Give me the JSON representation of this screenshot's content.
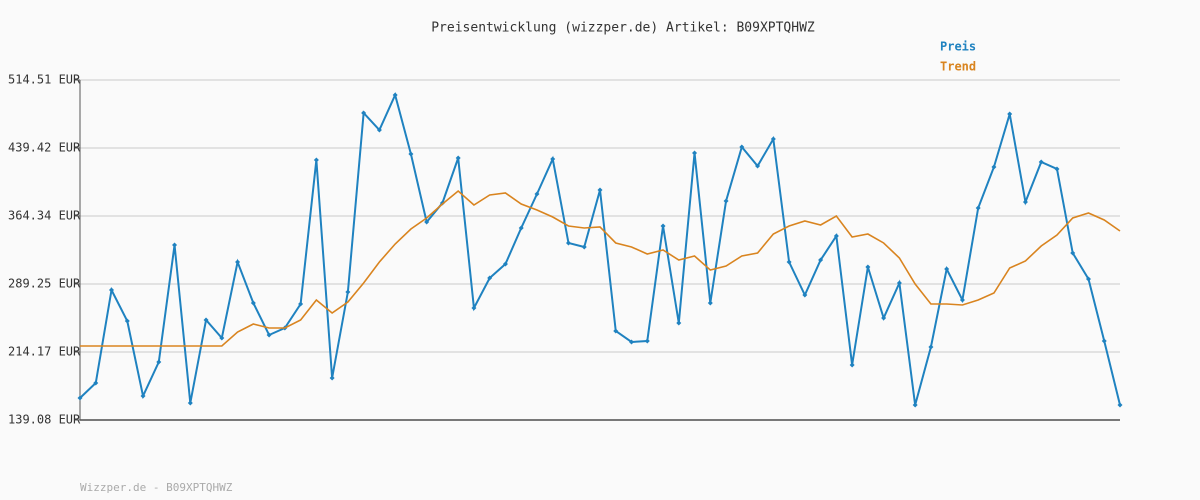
{
  "chart_data": {
    "type": "line",
    "title": "Preisentwicklung (wizzper.de) Artikel: B09XPTQHWZ",
    "footer": "Wizzper.de - B09XPTQHWZ",
    "ylim": [
      139.08,
      514.51
    ],
    "yticks": [
      {
        "value": 139.08,
        "label": "139.08 EUR"
      },
      {
        "value": 214.17,
        "label": "214.17 EUR"
      },
      {
        "value": 289.25,
        "label": "289.25 EUR"
      },
      {
        "value": 364.34,
        "label": "364.34 EUR"
      },
      {
        "value": 439.42,
        "label": "439.42 EUR"
      },
      {
        "value": 514.51,
        "label": "514.51 EUR"
      }
    ],
    "grid": true,
    "legend": "top-right",
    "series": [
      {
        "name": "Preis",
        "color": "#1f82c0",
        "markers": true,
        "values": [
          163.37,
          179.94,
          282.63,
          248.4,
          165.58,
          203.12,
          332.32,
          157.85,
          249.5,
          229.63,
          313.55,
          268.27,
          232.94,
          240.67,
          267.17,
          426.17,
          185.46,
          280.42,
          478.07,
          459.3,
          497.95,
          432.8,
          357.71,
          378.69,
          428.38,
          262.75,
          295.88,
          311.34,
          351.09,
          388.63,
          427.28,
          334.53,
          330.11,
          393.05,
          237.35,
          225.21,
          226.31,
          353.3,
          246.19,
          433.9,
          268.27,
          380.9,
          440.53,
          419.55,
          449.36,
          313.55,
          277.11,
          315.75,
          342.25,
          199.81,
          308.02,
          251.71,
          290.36,
          155.64,
          219.69,
          305.82,
          271.59,
          373.17,
          418.45,
          476.97,
          379.8,
          423.97,
          416.24,
          323.48,
          294.77,
          226.31,
          155.64
        ]
      },
      {
        "name": "Trend",
        "color": "#d9841f",
        "markers": false,
        "values": [
          220.79,
          220.79,
          220.79,
          220.79,
          220.79,
          220.79,
          220.79,
          220.79,
          220.79,
          220.79,
          236.25,
          245.08,
          240.67,
          240.67,
          249.5,
          271.59,
          257.23,
          269.38,
          290.36,
          313.55,
          333.42,
          349.98,
          362.13,
          377.59,
          391.94,
          376.49,
          387.53,
          389.74,
          377.59,
          370.96,
          363.23,
          353.3,
          351.09,
          352.19,
          334.53,
          330.11,
          322.38,
          326.8,
          315.75,
          320.17,
          304.71,
          309.13,
          320.17,
          323.48,
          344.46,
          353.3,
          358.82,
          354.4,
          364.34,
          341.15,
          344.46,
          334.53,
          317.96,
          289.25,
          267.17,
          267.17,
          266.06,
          271.59,
          279.31,
          306.92,
          314.65,
          331.21,
          343.36,
          362.13,
          367.65,
          359.92,
          347.78
        ]
      }
    ]
  }
}
